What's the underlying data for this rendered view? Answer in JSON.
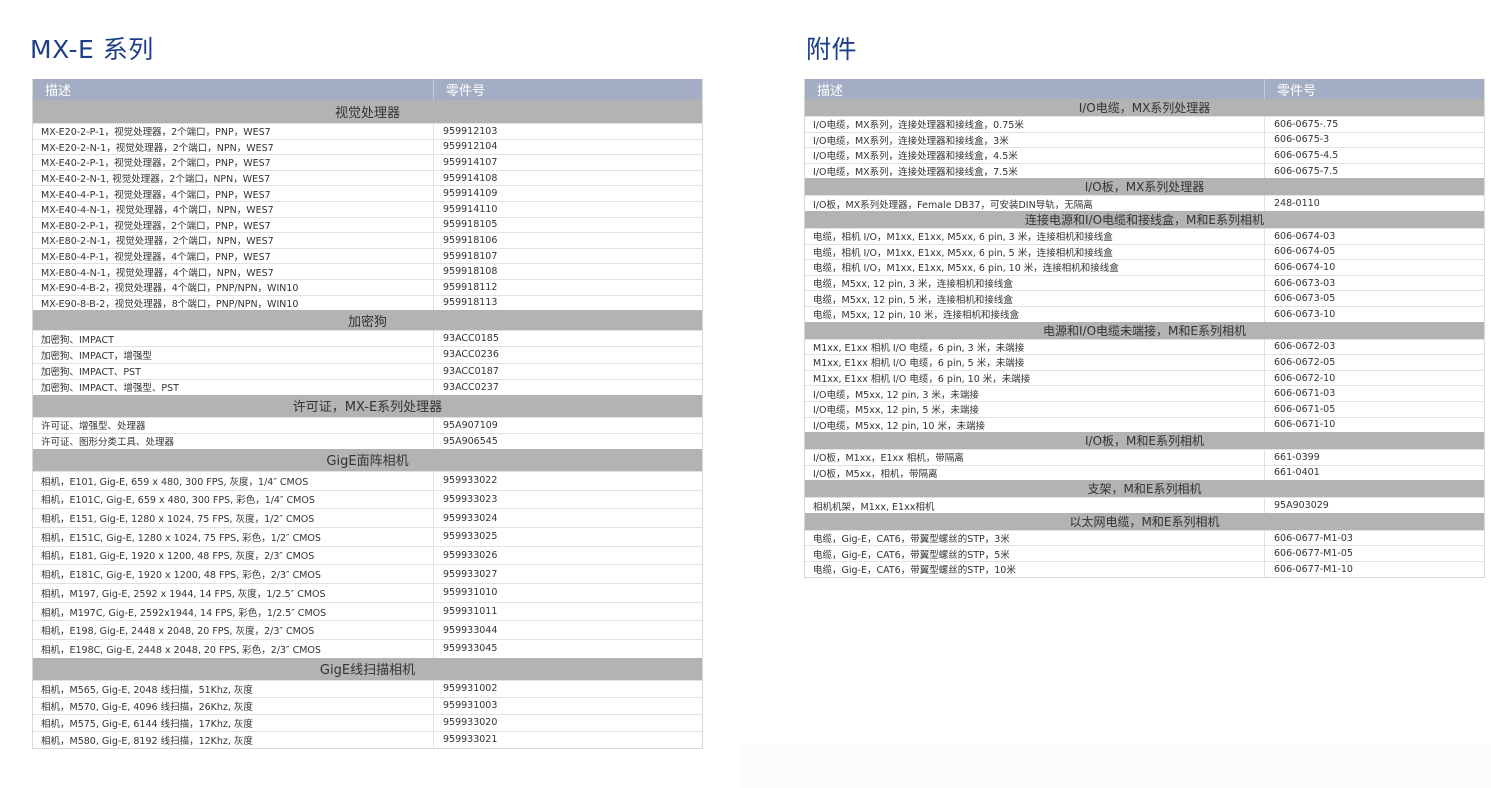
{
  "left": {
    "title": "MX-E 系列",
    "columns": {
      "desc": "描述",
      "part": "零件号"
    },
    "sections": [
      {
        "name": "视觉处理器",
        "rows": [
          [
            "MX-E20-2-P-1，视觉处理器，2个端口，PNP，WES7",
            "959912103"
          ],
          [
            "MX-E20-2-N-1，视觉处理器，2个端口，NPN，WES7",
            "959912104"
          ],
          [
            "MX-E40-2-P-1，视觉处理器，2个端口，PNP，WES7",
            "959914107"
          ],
          [
            "MX-E40-2-N-1, 视觉处理器，2个端口，NPN，WES7",
            "959914108"
          ],
          [
            "MX-E40-4-P-1，视觉处理器，4个端口，PNP，WES7",
            "959914109"
          ],
          [
            "MX-E40-4-N-1，视觉处理器，4个端口，NPN，WES7",
            "959914110"
          ],
          [
            "MX-E80-2-P-1，视觉处理器，2个端口，PNP，WES7",
            "959918105"
          ],
          [
            "MX-E80-2-N-1，视觉处理器，2个端口，NPN，WES7",
            "959918106"
          ],
          [
            "MX-E80-4-P-1，视觉处理器，4个端口，PNP，WES7",
            "959918107"
          ],
          [
            "MX-E80-4-N-1，视觉处理器，4个端口，NPN，WES7",
            "959918108"
          ],
          [
            "MX-E90-4-B-2，视觉处理器，4个端口，PNP/NPN，WIN10",
            "959918112"
          ],
          [
            "MX-E90-8-B-2，视觉处理器，8个端口，PNP/NPN，WIN10",
            "959918113"
          ]
        ]
      },
      {
        "name": "加密狗",
        "rows": [
          [
            "加密狗、IMPACT",
            "93ACC0185"
          ],
          [
            "加密狗、IMPACT，增强型",
            "93ACC0236"
          ],
          [
            "加密狗、IMPACT、PST",
            "93ACC0187"
          ],
          [
            "加密狗、IMPACT、增强型、PST",
            "93ACC0237"
          ]
        ]
      },
      {
        "name": "许可证，MX-E系列处理器",
        "rows": [
          [
            "许可证、增强型、处理器",
            "95A907109"
          ],
          [
            "许可证、图形分类工具、处理器",
            "95A906545"
          ]
        ]
      },
      {
        "name": "GigE面阵相机",
        "rows": [
          [
            "相机，E101, Gig-E, 659 x 480, 300 FPS, 灰度，1/4″ CMOS",
            "959933022"
          ],
          [
            "相机，E101C, Gig-E, 659 x 480, 300 FPS, 彩色，1/4″ CMOS",
            "959933023"
          ],
          [
            "相机，E151, Gig-E, 1280 x 1024, 75 FPS, 灰度，1/2″ CMOS",
            "959933024"
          ],
          [
            "相机，E151C, Gig-E, 1280 x 1024, 75 FPS, 彩色，1/2″ CMOS",
            "959933025"
          ],
          [
            "相机，E181, Gig-E, 1920 x 1200, 48 FPS, 灰度，2/3″ CMOS",
            "959933026"
          ],
          [
            "相机，E181C, Gig-E, 1920 x 1200, 48 FPS, 彩色，2/3″ CMOS",
            "959933027"
          ],
          [
            "相机，M197, Gig-E, 2592 x 1944, 14 FPS, 灰度，1/2.5″ CMOS",
            "959931010"
          ],
          [
            "相机，M197C, Gig-E, 2592x1944, 14 FPS, 彩色，1/2.5″ CMOS",
            "959931011"
          ],
          [
            "相机，E198, Gig-E, 2448 x 2048, 20 FPS, 灰度，2/3″ CMOS",
            "959933044"
          ],
          [
            "相机，E198C, Gig-E, 2448 x 2048, 20 FPS, 彩色，2/3″ CMOS",
            "959933045"
          ]
        ]
      },
      {
        "name": "GigE线扫描相机",
        "rows": [
          [
            "相机，M565, Gig-E, 2048 线扫描，51Khz, 灰度",
            "959931002"
          ],
          [
            "相机，M570, Gig-E, 4096 线扫描，26Khz, 灰度",
            "959931003"
          ],
          [
            "相机，M575, Gig-E, 6144 线扫描，17Khz, 灰度",
            "959933020"
          ],
          [
            "相机，M580, Gig-E, 8192 线扫描，12Khz, 灰度",
            "959933021"
          ]
        ]
      }
    ]
  },
  "right": {
    "title": "附件",
    "columns": {
      "desc": "描述",
      "part": "零件号"
    },
    "sections": [
      {
        "name": "I/O电缆，MX系列处理器",
        "rows": [
          [
            "I/O电缆，MX系列，连接处理器和接线盒，0.75米",
            "606-0675-.75"
          ],
          [
            "I/O电缆，MX系列，连接处理器和接线盒，3米",
            "606-0675-3"
          ],
          [
            "I/O电缆，MX系列，连接处理器和接线盒，4.5米",
            "606-0675-4.5"
          ],
          [
            "I/O电缆，MX系列，连接处理器和接线盒，7.5米",
            "606-0675-7.5"
          ]
        ]
      },
      {
        "name": "I/O板，MX系列处理器",
        "rows": [
          [
            "I/O板，MX系列处理器，Female DB37，可安装DIN导轨，无隔离",
            "248-0110"
          ]
        ]
      },
      {
        "name": "连接电源和I/O电缆和接线盒，M和E系列相机",
        "rows": [
          [
            "电缆，相机 I/O，M1xx, E1xx, M5xx, 6 pin, 3 米，连接相机和接线盒",
            "606-0674-03"
          ],
          [
            "电缆，相机 I/O，M1xx, E1xx, M5xx, 6 pin, 5 米，连接相机和接线盒",
            "606-0674-05"
          ],
          [
            "电缆，相机 I/O，M1xx, E1xx, M5xx, 6 pin, 10 米，连接相机和接线盒",
            "606-0674-10"
          ],
          [
            "电缆，M5xx, 12 pin, 3 米，连接相机和接线盒",
            "606-0673-03"
          ],
          [
            "电缆，M5xx, 12 pin, 5 米，连接相机和接线盒",
            "606-0673-05"
          ],
          [
            "电缆，M5xx, 12 pin, 10 米，连接相机和接线盒",
            "606-0673-10"
          ]
        ]
      },
      {
        "name": "电源和I/O电缆未端接，M和E系列相机",
        "rows": [
          [
            "M1xx, E1xx 相机 I/O 电缆，6 pin, 3 米，未端接",
            "606-0672-03"
          ],
          [
            "M1xx, E1xx 相机 I/O 电缆，6 pin, 5 米，未端接",
            "606-0672-05"
          ],
          [
            "M1xx, E1xx 相机 I/O 电缆，6 pin, 10 米，未端接",
            "606-0672-10"
          ],
          [
            "I/O电缆，M5xx, 12 pin, 3 米，未端接",
            "606-0671-03"
          ],
          [
            "I/O电缆，M5xx, 12 pin, 5 米，未端接",
            "606-0671-05"
          ],
          [
            "I/O电缆，M5xx, 12 pin, 10 米，未端接",
            "606-0671-10"
          ]
        ]
      },
      {
        "name": "I/O板，M和E系列相机",
        "rows": [
          [
            "I/O板，M1xx，E1xx 相机，带隔离",
            "661-0399"
          ],
          [
            "I/O板，M5xx，相机，带隔离",
            "661-0401"
          ]
        ]
      },
      {
        "name": "支架，M和E系列相机",
        "rows": [
          [
            "相机机架，M1xx, E1xx相机",
            "95A903029"
          ]
        ]
      },
      {
        "name": "以太网电缆，M和E系列相机",
        "rows": [
          [
            "电缆，Gig-E，CAT6，带翼型螺丝的STP，3米",
            "606-0677-M1-03"
          ],
          [
            "电缆，Gig-E，CAT6，带翼型螺丝的STP，5米",
            "606-0677-M1-05"
          ],
          [
            "电缆，Gig-E，CAT6，带翼型螺丝的STP，10米",
            "606-0677-M1-10"
          ]
        ]
      }
    ]
  },
  "colors": {
    "title": "#1d3f8a",
    "header_bg": "#a3adc4",
    "section_bg": "#b3b3b3"
  }
}
